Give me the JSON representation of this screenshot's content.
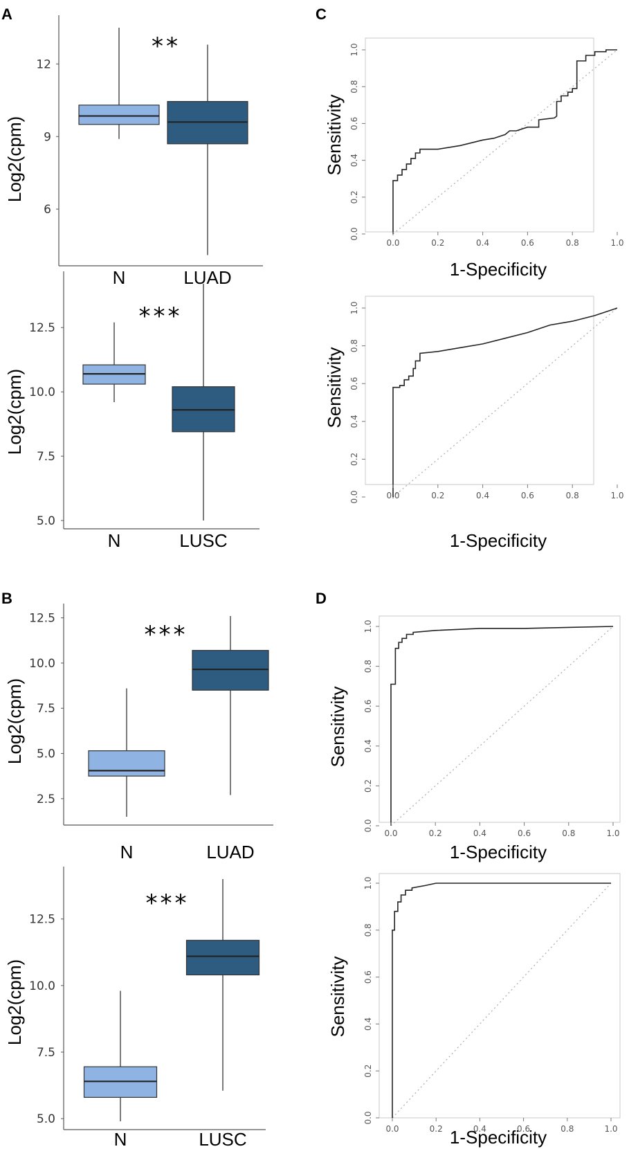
{
  "colors": {
    "normal": "#8fb4e3",
    "tumor": "#2e5b80",
    "line": "#333333",
    "diag": "#aaaaaa"
  },
  "chart_data": [
    {
      "panel": "A",
      "type": "box",
      "ylabel": "Log2(cpm)",
      "categories": [
        "N",
        "LUAD"
      ],
      "yticks": [
        12,
        9,
        6
      ],
      "yrange": [
        4,
        13.5
      ],
      "significance": "**",
      "boxes": [
        {
          "category": "N",
          "min": 8.9,
          "q1": 9.5,
          "median": 9.85,
          "q3": 10.3,
          "max": 13.5
        },
        {
          "category": "LUAD",
          "min": 4.1,
          "q1": 8.7,
          "median": 9.6,
          "q3": 10.45,
          "max": 12.8
        }
      ]
    },
    {
      "panel": "A",
      "type": "box",
      "ylabel": "Log2(cpm)",
      "categories": [
        "N",
        "LUSC"
      ],
      "yticks": [
        12.5,
        10.0,
        7.5,
        5.0
      ],
      "yrange": [
        5.0,
        14.2
      ],
      "significance": "***",
      "boxes": [
        {
          "category": "N",
          "min": 9.6,
          "q1": 10.3,
          "median": 10.7,
          "q3": 11.05,
          "max": 12.7
        },
        {
          "category": "LUSC",
          "min": 5.0,
          "q1": 8.45,
          "median": 9.3,
          "q3": 10.2,
          "max": 14.2
        }
      ]
    },
    {
      "panel": "B",
      "type": "box",
      "ylabel": "Log2(cpm)",
      "categories": [
        "N",
        "LUAD"
      ],
      "yticks": [
        12.5,
        10.0,
        7.5,
        5.0,
        2.5
      ],
      "yrange": [
        1.5,
        12.6
      ],
      "significance": "***",
      "boxes": [
        {
          "category": "N",
          "min": 1.5,
          "q1": 3.75,
          "median": 4.05,
          "q3": 5.15,
          "max": 8.6
        },
        {
          "category": "LUAD",
          "min": 2.7,
          "q1": 8.5,
          "median": 9.65,
          "q3": 10.7,
          "max": 12.6
        }
      ]
    },
    {
      "panel": "B",
      "type": "box",
      "ylabel": "Log2(cpm)",
      "categories": [
        "N",
        "LUSC"
      ],
      "yticks": [
        12.5,
        10.0,
        7.5,
        5.0
      ],
      "yrange": [
        4.9,
        14.0
      ],
      "significance": "***",
      "boxes": [
        {
          "category": "N",
          "min": 4.9,
          "q1": 5.8,
          "median": 6.4,
          "q3": 6.95,
          "max": 9.8
        },
        {
          "category": "LUSC",
          "min": 6.05,
          "q1": 10.4,
          "median": 11.1,
          "q3": 11.7,
          "max": 14.0
        }
      ]
    },
    {
      "panel": "C",
      "type": "line",
      "subtype": "roc",
      "xlabel": "1-Specificity",
      "ylabel": "Sensitivity",
      "ticks": [
        "0.0",
        "0.2",
        "0.4",
        "0.6",
        "0.8",
        "1.0"
      ],
      "curve": [
        [
          0,
          0
        ],
        [
          0,
          0.29
        ],
        [
          0.02,
          0.29
        ],
        [
          0.02,
          0.32
        ],
        [
          0.04,
          0.32
        ],
        [
          0.04,
          0.35
        ],
        [
          0.06,
          0.35
        ],
        [
          0.06,
          0.38
        ],
        [
          0.08,
          0.38
        ],
        [
          0.08,
          0.41
        ],
        [
          0.1,
          0.41
        ],
        [
          0.1,
          0.44
        ],
        [
          0.12,
          0.44
        ],
        [
          0.12,
          0.46
        ],
        [
          0.2,
          0.46
        ],
        [
          0.3,
          0.48
        ],
        [
          0.4,
          0.51
        ],
        [
          0.45,
          0.52
        ],
        [
          0.5,
          0.54
        ],
        [
          0.52,
          0.56
        ],
        [
          0.55,
          0.56
        ],
        [
          0.6,
          0.58
        ],
        [
          0.65,
          0.58
        ],
        [
          0.65,
          0.62
        ],
        [
          0.72,
          0.63
        ],
        [
          0.73,
          0.64
        ],
        [
          0.73,
          0.72
        ],
        [
          0.75,
          0.72
        ],
        [
          0.75,
          0.75
        ],
        [
          0.78,
          0.75
        ],
        [
          0.78,
          0.77
        ],
        [
          0.8,
          0.77
        ],
        [
          0.8,
          0.79
        ],
        [
          0.82,
          0.79
        ],
        [
          0.82,
          0.94
        ],
        [
          0.86,
          0.94
        ],
        [
          0.86,
          0.97
        ],
        [
          0.9,
          0.97
        ],
        [
          0.9,
          0.99
        ],
        [
          0.95,
          0.99
        ],
        [
          0.95,
          1.0
        ],
        [
          1.0,
          1.0
        ]
      ]
    },
    {
      "panel": "C",
      "type": "line",
      "subtype": "roc",
      "xlabel": "1-Specificity",
      "ylabel": "Sensitivity",
      "ticks": [
        "0.0",
        "0.2",
        "0.4",
        "0.6",
        "0.8",
        "1.0"
      ],
      "curve": [
        [
          0,
          0
        ],
        [
          0,
          0.58
        ],
        [
          0.03,
          0.58
        ],
        [
          0.03,
          0.59
        ],
        [
          0.05,
          0.59
        ],
        [
          0.05,
          0.62
        ],
        [
          0.07,
          0.62
        ],
        [
          0.07,
          0.64
        ],
        [
          0.09,
          0.64
        ],
        [
          0.09,
          0.68
        ],
        [
          0.1,
          0.68
        ],
        [
          0.1,
          0.72
        ],
        [
          0.12,
          0.72
        ],
        [
          0.12,
          0.76
        ],
        [
          0.2,
          0.77
        ],
        [
          0.3,
          0.79
        ],
        [
          0.4,
          0.81
        ],
        [
          0.5,
          0.84
        ],
        [
          0.6,
          0.87
        ],
        [
          0.7,
          0.91
        ],
        [
          0.8,
          0.93
        ],
        [
          0.9,
          0.96
        ],
        [
          1.0,
          1.0
        ]
      ]
    },
    {
      "panel": "D",
      "type": "line",
      "subtype": "roc",
      "xlabel": "1-Specificity",
      "ylabel": "Sensitivity",
      "ticks": [
        "0.0",
        "0.2",
        "0.4",
        "0.6",
        "0.8",
        "1.0"
      ],
      "curve": [
        [
          0,
          0
        ],
        [
          0,
          0.71
        ],
        [
          0.02,
          0.71
        ],
        [
          0.02,
          0.89
        ],
        [
          0.035,
          0.89
        ],
        [
          0.035,
          0.92
        ],
        [
          0.05,
          0.92
        ],
        [
          0.05,
          0.94
        ],
        [
          0.07,
          0.94
        ],
        [
          0.07,
          0.96
        ],
        [
          0.1,
          0.96
        ],
        [
          0.1,
          0.97
        ],
        [
          0.2,
          0.98
        ],
        [
          0.4,
          0.99
        ],
        [
          0.6,
          0.99
        ],
        [
          0.8,
          0.995
        ],
        [
          1.0,
          1.0
        ]
      ]
    },
    {
      "panel": "D",
      "type": "line",
      "subtype": "roc",
      "xlabel": "1-Specificity",
      "ylabel": "Sensitivity",
      "ticks": [
        "0.0",
        "0.2",
        "0.4",
        "0.6",
        "0.8",
        "1.0"
      ],
      "curve": [
        [
          0,
          0
        ],
        [
          0,
          0.8
        ],
        [
          0.01,
          0.8
        ],
        [
          0.01,
          0.88
        ],
        [
          0.025,
          0.88
        ],
        [
          0.025,
          0.92
        ],
        [
          0.04,
          0.92
        ],
        [
          0.04,
          0.95
        ],
        [
          0.06,
          0.95
        ],
        [
          0.06,
          0.97
        ],
        [
          0.09,
          0.97
        ],
        [
          0.09,
          0.98
        ],
        [
          0.15,
          0.99
        ],
        [
          0.2,
          1.0
        ],
        [
          1.0,
          1.0
        ]
      ]
    }
  ],
  "panels": [
    "A",
    "C",
    "B",
    "D"
  ]
}
